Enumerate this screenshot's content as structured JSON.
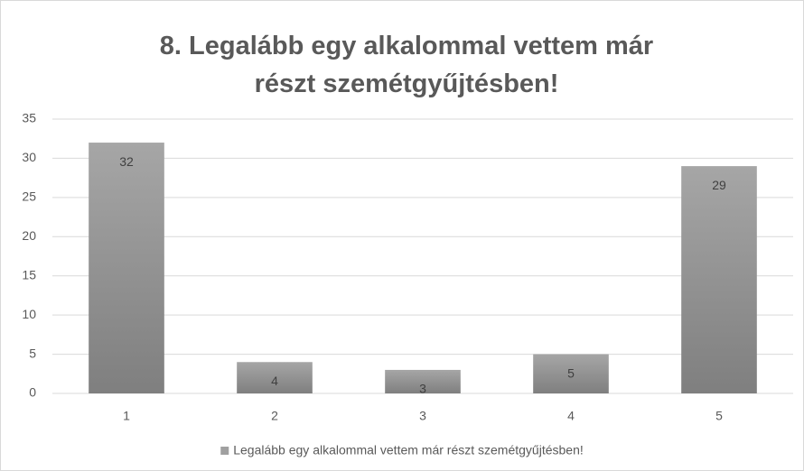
{
  "chart_data": {
    "type": "bar",
    "title": "8. Legalább egy alkalommal vettem már részt szemétgyűjtésben!",
    "categories": [
      "1",
      "2",
      "3",
      "4",
      "5"
    ],
    "series": [
      {
        "name": "Legalább egy alkalommal vettem már részt szemétgyűjtésben!",
        "color": "#a0a0a0",
        "values": [
          32,
          4,
          3,
          5,
          29
        ]
      }
    ],
    "ylim": [
      0,
      35
    ],
    "yticks": [
      0,
      5,
      10,
      15,
      20,
      25,
      30,
      35
    ],
    "grid": true,
    "legend": "bottom",
    "data_labels": true
  }
}
